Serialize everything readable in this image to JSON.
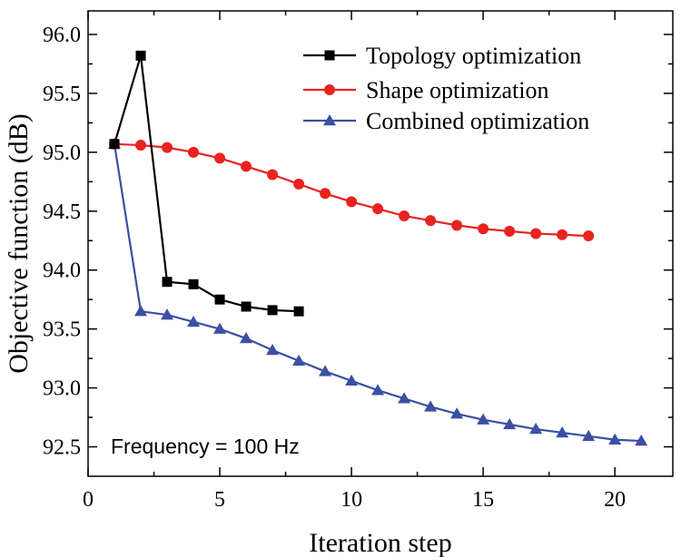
{
  "chart_data": {
    "type": "line",
    "title": "",
    "xlabel": "Iteration step",
    "ylabel": "Objective function (dB)",
    "xlim": [
      0,
      22.2
    ],
    "ylim": [
      92.25,
      96.2
    ],
    "xticks": [
      0,
      5,
      10,
      15,
      20
    ],
    "xtick_labels": [
      "0",
      "5",
      "10",
      "15",
      "20"
    ],
    "yticks": [
      92.5,
      93.0,
      93.5,
      94.0,
      94.5,
      95.0,
      95.5,
      96.0
    ],
    "ytick_labels": [
      "92.5",
      "93.0",
      "93.5",
      "94.0",
      "94.5",
      "95.0",
      "95.5",
      "96.0"
    ],
    "annotation": "Frequency = 100 Hz",
    "legend_position": "top-right",
    "series": [
      {
        "name": "Topology optimization",
        "color": "#000000",
        "marker": "square",
        "x": [
          1,
          2,
          3,
          4,
          5,
          6,
          7,
          8
        ],
        "values": [
          95.07,
          95.82,
          93.9,
          93.88,
          93.75,
          93.69,
          93.66,
          93.65
        ]
      },
      {
        "name": "Shape optimization",
        "color": "#e8231f",
        "marker": "circle",
        "x": [
          1,
          2,
          3,
          4,
          5,
          6,
          7,
          8,
          9,
          10,
          11,
          12,
          13,
          14,
          15,
          16,
          17,
          18,
          19
        ],
        "values": [
          95.07,
          95.06,
          95.04,
          95.0,
          94.95,
          94.88,
          94.81,
          94.73,
          94.65,
          94.58,
          94.52,
          94.46,
          94.42,
          94.38,
          94.35,
          94.33,
          94.31,
          94.3,
          94.29
        ]
      },
      {
        "name": "Combined optimization",
        "color": "#3b4fa3",
        "marker": "triangle",
        "x": [
          1,
          2,
          3,
          4,
          5,
          6,
          7,
          8,
          9,
          10,
          11,
          12,
          13,
          14,
          15,
          16,
          17,
          18,
          19,
          20,
          21
        ],
        "values": [
          95.07,
          93.65,
          93.62,
          93.56,
          93.5,
          93.42,
          93.32,
          93.23,
          93.14,
          93.06,
          92.98,
          92.91,
          92.84,
          92.78,
          92.73,
          92.69,
          92.65,
          92.62,
          92.59,
          92.56,
          92.55
        ]
      }
    ]
  }
}
